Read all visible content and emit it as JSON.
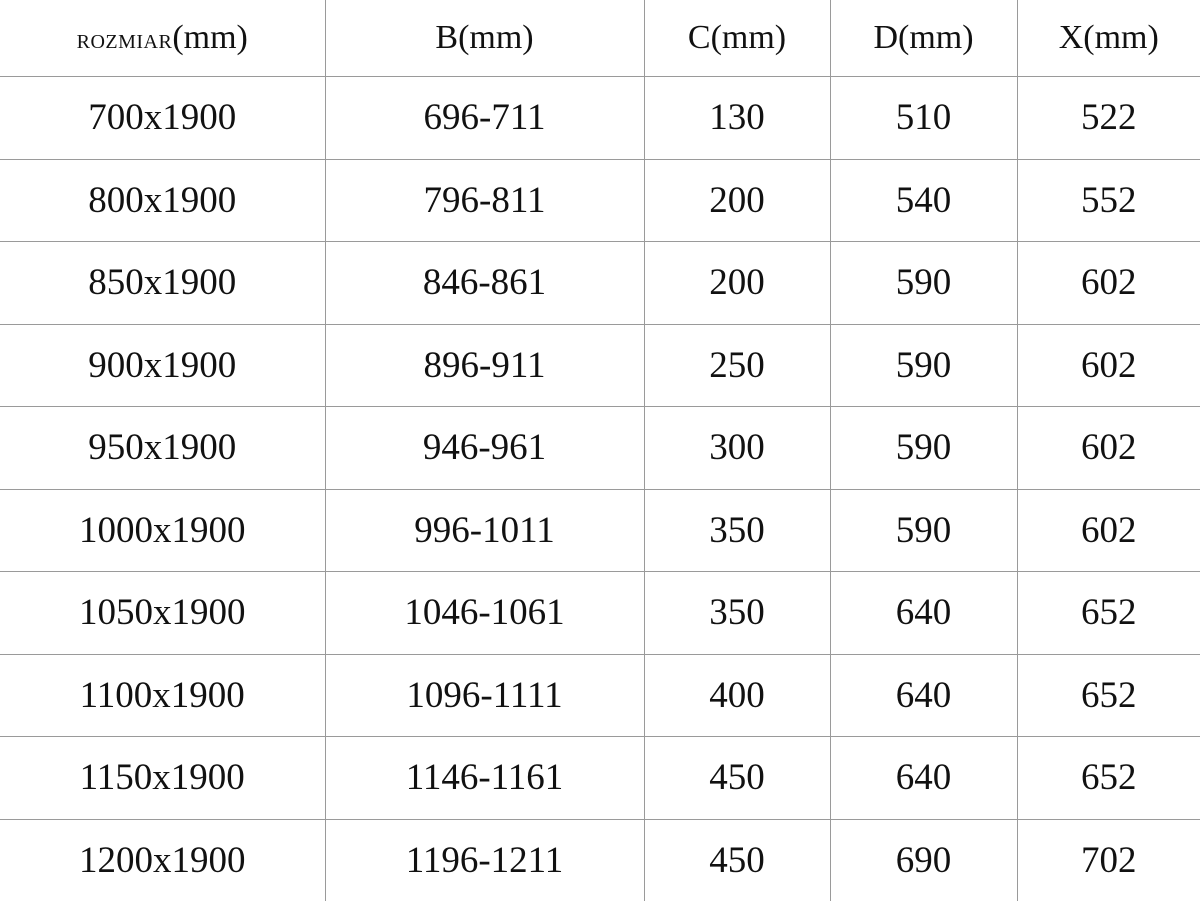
{
  "table": {
    "headers": [
      {
        "main": "ROZMIAR",
        "unit": "(mm)"
      },
      {
        "main": "B",
        "unit": "(mm)"
      },
      {
        "main": "C",
        "unit": "(mm)"
      },
      {
        "main": "D",
        "unit": "(mm)"
      },
      {
        "main": "X",
        "unit": "(mm)"
      }
    ],
    "rows": [
      [
        "700x1900",
        "696-711",
        "130",
        "510",
        "522"
      ],
      [
        "800x1900",
        "796-811",
        "200",
        "540",
        "552"
      ],
      [
        "850x1900",
        "846-861",
        "200",
        "590",
        "602"
      ],
      [
        "900x1900",
        "896-911",
        "250",
        "590",
        "602"
      ],
      [
        "950x1900",
        "946-961",
        "300",
        "590",
        "602"
      ],
      [
        "1000x1900",
        "996-1011",
        "350",
        "590",
        "602"
      ],
      [
        "1050x1900",
        "1046-1061",
        "350",
        "640",
        "652"
      ],
      [
        "1100x1900",
        "1096-1111",
        "400",
        "640",
        "652"
      ],
      [
        "1150x1900",
        "1146-1161",
        "450",
        "640",
        "652"
      ],
      [
        "1200x1900",
        "1196-1211",
        "450",
        "690",
        "702"
      ]
    ]
  }
}
